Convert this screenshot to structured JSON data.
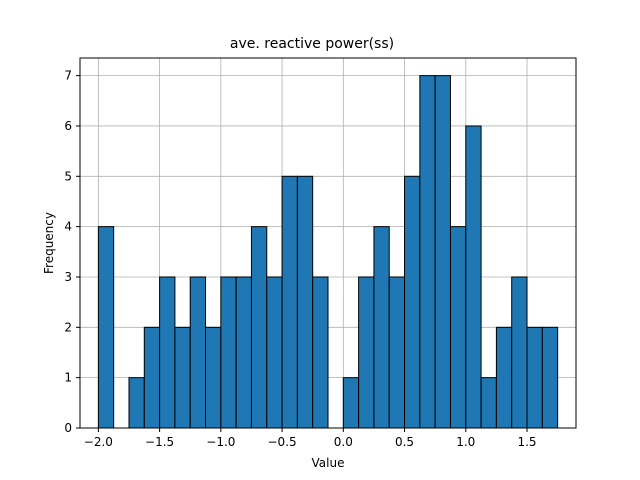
{
  "chart_data": {
    "type": "bar",
    "title": "ave. reactive power(ss)",
    "xlabel": "Value",
    "ylabel": "Frequency",
    "xlim": [
      -2.15,
      1.9
    ],
    "ylim": [
      0,
      7.35
    ],
    "grid": true,
    "bar_color": "#1f77b4",
    "edge_color": "#000000",
    "grid_color": "#b0b0b0",
    "x_ticks": [
      -2.0,
      -1.5,
      -1.0,
      -0.5,
      0.0,
      0.5,
      1.0,
      1.5
    ],
    "x_tick_labels": [
      "−2.0",
      "−1.5",
      "−1.0",
      "−0.5",
      "0.0",
      "0.5",
      "1.0",
      "1.5"
    ],
    "y_ticks": [
      0,
      1,
      2,
      3,
      4,
      5,
      6,
      7
    ],
    "y_tick_labels": [
      "0",
      "1",
      "2",
      "3",
      "4",
      "5",
      "6",
      "7"
    ],
    "bins": [
      {
        "x0": -2.0,
        "x1": -1.875,
        "count": 4
      },
      {
        "x0": -1.875,
        "x1": -1.75,
        "count": 0
      },
      {
        "x0": -1.75,
        "x1": -1.625,
        "count": 1
      },
      {
        "x0": -1.625,
        "x1": -1.5,
        "count": 2
      },
      {
        "x0": -1.5,
        "x1": -1.375,
        "count": 3
      },
      {
        "x0": -1.375,
        "x1": -1.25,
        "count": 2
      },
      {
        "x0": -1.25,
        "x1": -1.125,
        "count": 3
      },
      {
        "x0": -1.125,
        "x1": -1.0,
        "count": 2
      },
      {
        "x0": -1.0,
        "x1": -0.875,
        "count": 3
      },
      {
        "x0": -0.875,
        "x1": -0.75,
        "count": 3
      },
      {
        "x0": -0.75,
        "x1": -0.625,
        "count": 4
      },
      {
        "x0": -0.625,
        "x1": -0.5,
        "count": 3
      },
      {
        "x0": -0.5,
        "x1": -0.375,
        "count": 5
      },
      {
        "x0": -0.375,
        "x1": -0.25,
        "count": 5
      },
      {
        "x0": -0.25,
        "x1": -0.125,
        "count": 3
      },
      {
        "x0": -0.125,
        "x1": 0.0,
        "count": 0
      },
      {
        "x0": 0.0,
        "x1": 0.125,
        "count": 1
      },
      {
        "x0": 0.125,
        "x1": 0.25,
        "count": 3
      },
      {
        "x0": 0.25,
        "x1": 0.375,
        "count": 4
      },
      {
        "x0": 0.375,
        "x1": 0.5,
        "count": 3
      },
      {
        "x0": 0.5,
        "x1": 0.625,
        "count": 5
      },
      {
        "x0": 0.625,
        "x1": 0.75,
        "count": 7
      },
      {
        "x0": 0.75,
        "x1": 0.875,
        "count": 7
      },
      {
        "x0": 0.875,
        "x1": 1.0,
        "count": 4
      },
      {
        "x0": 1.0,
        "x1": 1.125,
        "count": 6
      },
      {
        "x0": 1.125,
        "x1": 1.25,
        "count": 1
      },
      {
        "x0": 1.25,
        "x1": 1.375,
        "count": 2
      },
      {
        "x0": 1.375,
        "x1": 1.5,
        "count": 3
      },
      {
        "x0": 1.5,
        "x1": 1.625,
        "count": 2
      },
      {
        "x0": 1.625,
        "x1": 1.75,
        "count": 2
      }
    ]
  }
}
